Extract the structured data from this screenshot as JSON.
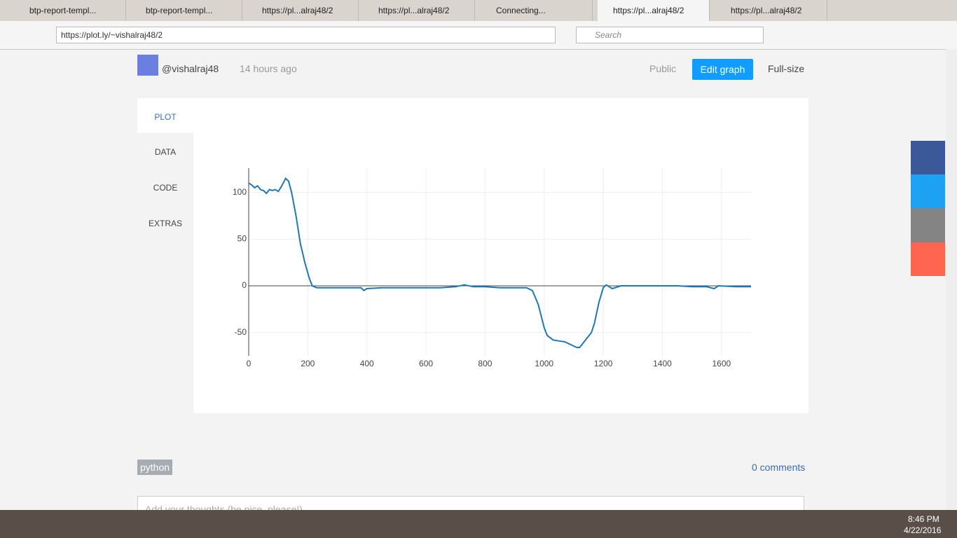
{
  "browser": {
    "tabs": [
      "btp-report-templ...",
      "btp-report-templ...",
      "https://pl...alraj48/2",
      "https://pl...alraj48/2",
      "Connecting...",
      "https://pl...alraj48/2",
      "https://pl...alraj48/2"
    ],
    "url": "https://plot.ly/~vishalraj48/2",
    "search_placeholder": "Search"
  },
  "header": {
    "user": "@vishalraj48",
    "time": "14 hours ago",
    "visibility": "Public",
    "edit": "Edit graph",
    "fullsize": "Full-size"
  },
  "sidebar": [
    "PLOT",
    "DATA",
    "CODE",
    "EXTRAS"
  ],
  "chart_data": {
    "type": "line",
    "x": [
      0,
      10,
      20,
      30,
      40,
      50,
      60,
      70,
      80,
      90,
      100,
      110,
      125,
      135,
      145,
      160,
      175,
      190,
      205,
      215,
      230,
      260,
      300,
      350,
      380,
      390,
      400,
      450,
      500,
      550,
      600,
      650,
      700,
      730,
      760,
      800,
      850,
      900,
      940,
      960,
      980,
      1000,
      1010,
      1030,
      1050,
      1070,
      1090,
      1110,
      1120,
      1140,
      1160,
      1170,
      1185,
      1200,
      1210,
      1230,
      1260,
      1300,
      1350,
      1400,
      1450,
      1500,
      1550,
      1575,
      1590,
      1650,
      1700
    ],
    "series": [
      {
        "color": "#1f77b4",
        "values": [
          110,
          108,
          105,
          107,
          103,
          102,
          99,
          103,
          102,
          103,
          101,
          106,
          115,
          112,
          100,
          75,
          45,
          25,
          8,
          0,
          -2,
          -2,
          -2,
          -2,
          -2,
          -5,
          -3,
          -2,
          -2,
          -2,
          -2,
          -2,
          -1,
          1,
          -1,
          -1,
          -2,
          -2,
          -2,
          -5,
          -20,
          -45,
          -53,
          -58,
          -59,
          -60,
          -63,
          -66,
          -66,
          -58,
          -50,
          -40,
          -18,
          -2,
          1,
          -3,
          0,
          0,
          0,
          0,
          0,
          -1,
          -1,
          -3,
          0,
          -1,
          -1
        ]
      }
    ],
    "xlim": [
      0,
      1700
    ],
    "ylim": [
      -75,
      126
    ],
    "xticks": [
      0,
      200,
      400,
      600,
      800,
      1000,
      1200,
      1400,
      1600
    ],
    "yticks": [
      -50,
      0,
      50,
      100
    ],
    "grid": true
  },
  "footer": {
    "tag": "python",
    "comments": "0 comments",
    "comment_placeholder": "Add your thoughts (be nice, please!)"
  },
  "taskbar": {
    "time": "8:46 PM",
    "date": "4/22/2016"
  }
}
